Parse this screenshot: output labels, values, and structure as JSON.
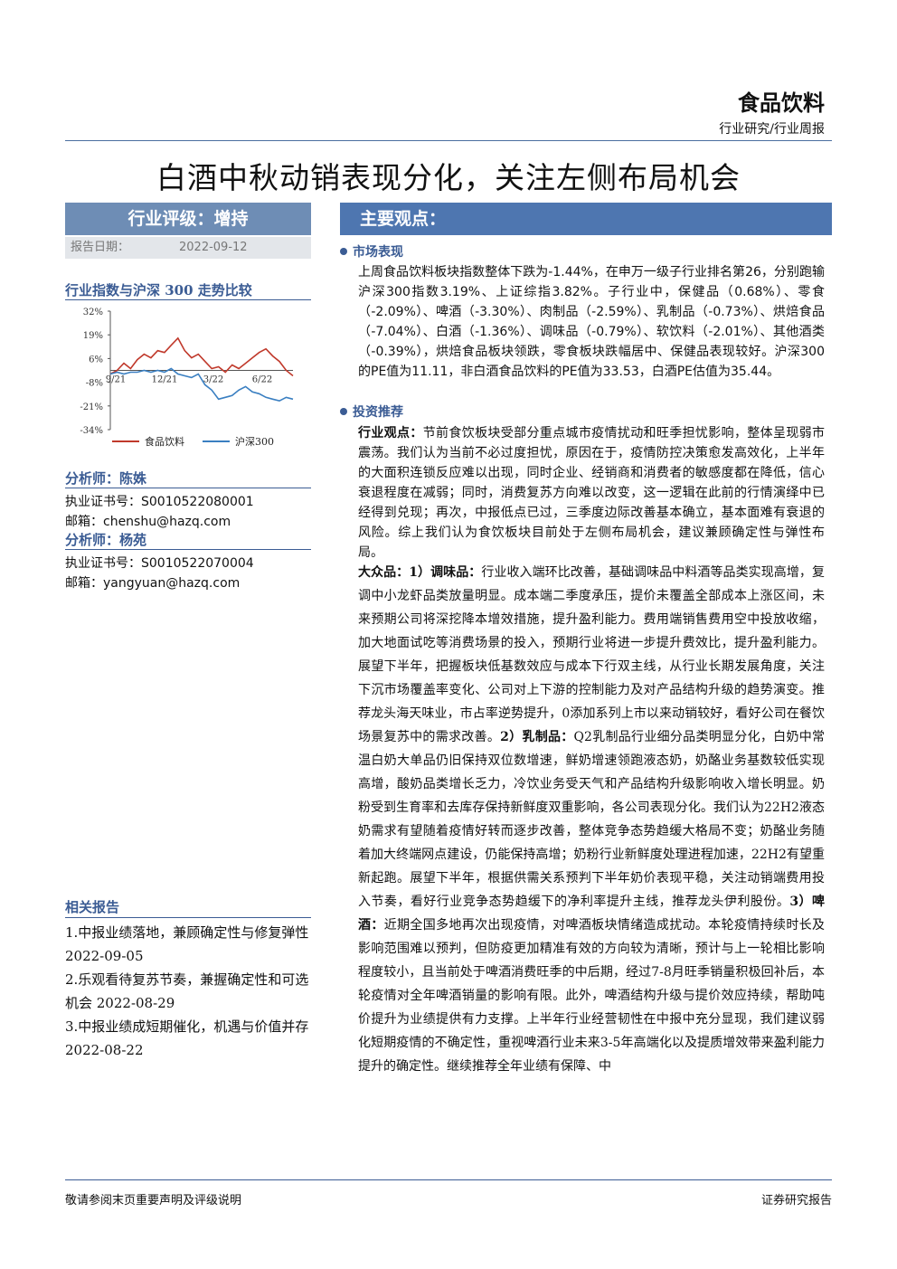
{
  "header": {
    "sector": "食品饮料",
    "report_type": "行业研究/行业周报"
  },
  "title": "白酒中秋动销表现分化，关注左侧布局机会",
  "rating": "行业评级：增持",
  "report_date": {
    "label": "报告日期：",
    "value": "2022-09-12"
  },
  "chart_section_title": "行业指数与沪深 300 走势比较",
  "chart_data": {
    "type": "line",
    "x_ticks": [
      "9/21",
      "12/21",
      "3/22",
      "6/22"
    ],
    "y_ticks": [
      "32%",
      "19%",
      "6%",
      "-8%",
      "-21%",
      "-34%"
    ],
    "ylim": [
      -34,
      32
    ],
    "series": [
      {
        "name": "食品饮料",
        "color": "#c0392b",
        "values": [
          -3,
          -1,
          3,
          0,
          5,
          8,
          6,
          10,
          9,
          13,
          17,
          10,
          6,
          8,
          4,
          0,
          1,
          -2,
          2,
          0,
          3,
          6,
          9,
          11,
          7,
          4,
          -1,
          -4
        ]
      },
      {
        "name": "沪深300",
        "color": "#3a7fc1",
        "values": [
          -3,
          -2,
          -3,
          -2,
          -2,
          -1,
          -2,
          -1,
          -2,
          0,
          -3,
          -4,
          -5,
          -3,
          -9,
          -12,
          -17,
          -16,
          -15,
          -12,
          -10,
          -13,
          -14,
          -16,
          -17,
          -18,
          -16,
          -17
        ]
      }
    ]
  },
  "analysts": [
    {
      "title": "分析师：陈姝",
      "cert_label": "执业证书号：",
      "cert": "S0010522080001",
      "email_label": "邮箱：",
      "email": "chenshu@hazq.com"
    },
    {
      "title": "分析师：杨苑",
      "cert_label": "执业证书号：",
      "cert": "S0010522070004",
      "email_label": "邮箱：",
      "email": "yangyuan@hazq.com"
    }
  ],
  "related": {
    "title": "相关报告",
    "items": [
      "1.中报业绩落地，兼顾确定性与修复弹性  2022-09-05",
      "2.乐观看待复苏节奏，兼握确定性和可选机会  2022-08-29",
      "3.中报业绩成短期催化，机遇与价值并存  2022-08-22"
    ]
  },
  "main": {
    "heading": "主要观点：",
    "market_title": "市场表现",
    "market_text": "上周食品饮料板块指数整体下跌为-1.44%，在申万一级子行业排名第26，分别跑输沪深300指数3.19%、上证综指3.82%。子行业中，保健品（0.68%）、零食（-2.09%）、啤酒（-3.30%）、肉制品（-2.59%）、乳制品（-0.73%）、烘焙食品（-7.04%）、白酒（-1.36%）、调味品（-0.79%）、软饮料（-2.01%）、其他酒类（-0.39%），烘焙食品板块领跌，零食板块跌幅居中、保健品表现较好。沪深300的PE值为11.11，非白酒食品饮料的PE值为33.53，白酒PE估值为35.44。",
    "invest_title": "投资推荐",
    "view_label": "行业观点：",
    "view_text": "节前食饮板块受部分重点城市疫情扰动和旺季担忧影响，整体呈现弱市震荡。我们认为当前不必过度担忧，原因在于，疫情防控决策愈发高效化，上半年的大面积连锁反应难以出现，同时企业、经销商和消费者的敏感度都在降低，信心衰退程度在减弱；同时，消费复苏方向难以改变，这一逻辑在此前的行情演绎中已经得到兑现；再次，中报低点已过，三季度边际改善基本确立，基本面难有衰退的风险。综上我们认为食饮板块目前处于左侧布局机会，建议兼顾确定性与弹性布局。",
    "mass_label": "大众品：1）调味品：",
    "mass_text": "行业收入端环比改善，基础调味品中料酒等品类实现高增，复调中小龙虾品类放量明显。成本端二季度承压，提价未覆盖全部成本上涨区间，未来预期公司将深挖降本增效措施，提升盈利能力。费用端销售费用空中投放收缩，加大地面试吃等消费场景的投入，预期行业将进一步提升费效比，提升盈利能力。展望下半年，把握板块低基数效应与成本下行双主线，从行业长期发展角度，关注下沉市场覆盖率变化、公司对上下游的控制能力及对产品结构升级的趋势演变。推荐龙头海天味业，市占率逆势提升，0添加系列上市以来动销较好，看好公司在餐饮场景复苏中的需求改善。",
    "dairy_label": "2）乳制品：",
    "dairy_text": "Q2乳制品行业细分品类明显分化，白奶中常温白奶大单品仍旧保持双位数增速，鲜奶增速领跑液态奶，奶酪业务基数较低实现高增，酸奶品类增长乏力，冷饮业务受天气和产品结构升级影响收入增长明显。奶粉受到生育率和去库存保持新鲜度双重影响，各公司表现分化。我们认为22H2液态奶需求有望随着疫情好转而逐步改善，整体竞争态势趋缓大格局不变；奶酪业务随着加大终端网点建设，仍能保持高增；奶粉行业新鲜度处理进程加速，22H2有望重新起跑。展望下半年，根据供需关系预判下半年奶价表现平稳，关注动销端费用投入节奏，看好行业竞争态势趋缓下的净利率提升主线，推荐龙头伊利股份。",
    "beer_label": "3）啤酒：",
    "beer_text": "近期全国多地再次出现疫情，对啤酒板块情绪造成扰动。本轮疫情持续时长及影响范围难以预判，但防疫更加精准有效的方向较为清晰，预计与上一轮相比影响程度较小，且当前处于啤酒消费旺季的中后期，经过7-8月旺季销量积极回补后，本轮疫情对全年啤酒销量的影响有限。此外，啤酒结构升级与提价效应持续，帮助吨价提升为业绩提供有力支撑。上半年行业经营韧性在中报中充分显现，我们建议弱化短期疫情的不确定性，重视啤酒行业未来3-5年高端化以及提质增效带来盈利能力提升的确定性。继续推荐全年业绩有保障、中"
  },
  "footer": {
    "left": "敬请参阅末页重要声明及评级说明",
    "right": "证券研究报告"
  }
}
